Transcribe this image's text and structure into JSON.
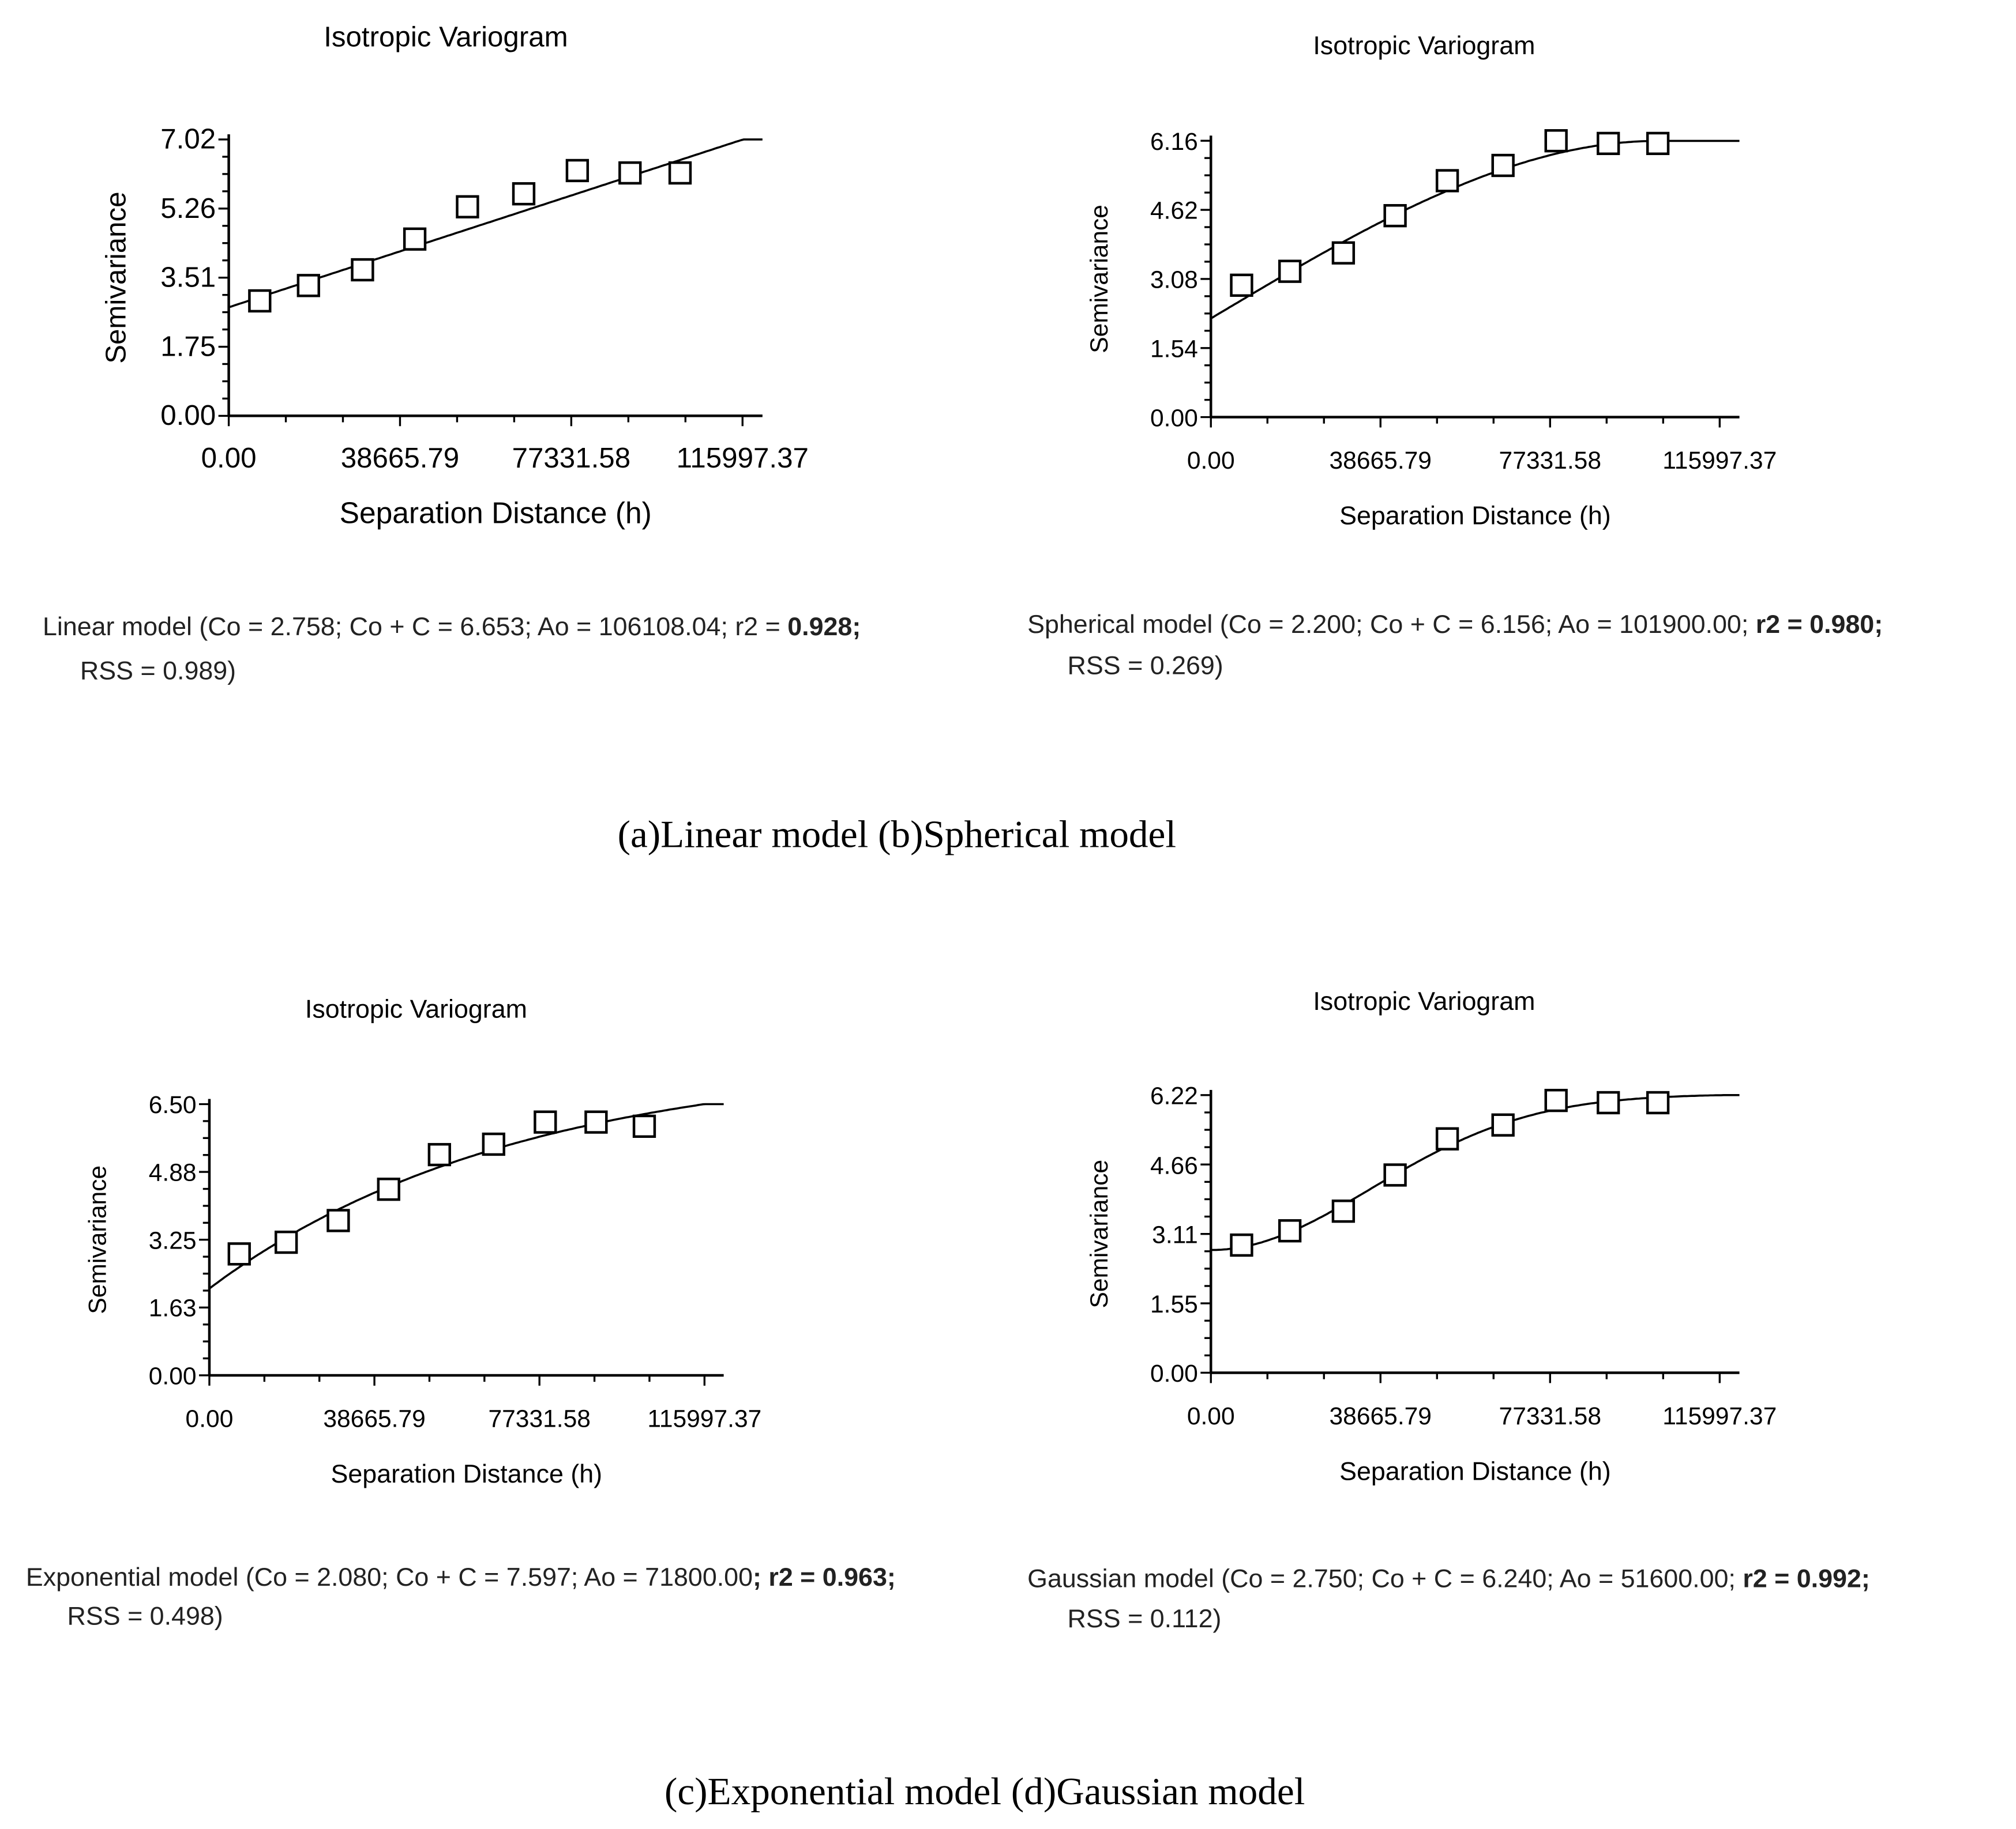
{
  "chart_data": [
    {
      "id": "a",
      "type": "scatter",
      "title": "Isotropic Variogram",
      "xlabel": "Separation Distance (h)",
      "ylabel": "Semivariance",
      "xticks": [
        "0.00",
        "38665.79",
        "77331.58",
        "115997.37"
      ],
      "xtick_values": [
        0,
        38665.79,
        77331.58,
        115997.37
      ],
      "yticks": [
        "0.00",
        "1.75",
        "3.51",
        "5.26",
        "7.02"
      ],
      "ytick_values": [
        0,
        1.75,
        3.51,
        5.26,
        7.02
      ],
      "xlim": [
        0,
        120500
      ],
      "ylim": [
        0,
        7.02
      ],
      "points": {
        "x": [
          7000,
          18000,
          30200,
          42000,
          53900,
          66600,
          78700,
          90600,
          101900
        ],
        "y": [
          2.92,
          3.31,
          3.71,
          4.49,
          5.31,
          5.64,
          6.23,
          6.17,
          6.17
        ]
      },
      "model": {
        "type": "linear",
        "Co": 2.758,
        "sill": 6.653,
        "Ao": 106108.04
      },
      "caption_line1": "Linear model (Co = 2.758; Co + C = 6.653; Ao = 106108.04; r2 = ",
      "r2": "0.928;",
      "caption_line2": "RSS = 0.989)"
    },
    {
      "id": "b",
      "type": "scatter",
      "title": "Isotropic Variogram",
      "xlabel": "Separation Distance (h)",
      "ylabel": "Semivariance",
      "xticks": [
        "0.00",
        "38665.79",
        "77331.58",
        "115997.37"
      ],
      "xtick_values": [
        0,
        38665.79,
        77331.58,
        115997.37
      ],
      "yticks": [
        "0.00",
        "1.54",
        "3.08",
        "4.62",
        "6.16"
      ],
      "ytick_values": [
        0,
        1.54,
        3.08,
        4.62,
        6.16
      ],
      "xlim": [
        0,
        120500
      ],
      "ylim": [
        0,
        6.16
      ],
      "points": {
        "x": [
          7000,
          18000,
          30200,
          42000,
          53900,
          66600,
          78700,
          90600,
          101900
        ],
        "y": [
          2.94,
          3.25,
          3.66,
          4.49,
          5.27,
          5.61,
          6.16,
          6.1,
          6.1
        ]
      },
      "model": {
        "type": "spherical",
        "Co": 2.2,
        "sill": 6.156,
        "Ao": 101900.0
      },
      "caption_line1": "Spherical model (Co = 2.200; Co + C = 6.156; Ao = 101900.00; ",
      "r2": "r2 = 0.980;",
      "caption_line2": "RSS = 0.269)"
    },
    {
      "id": "c",
      "type": "scatter",
      "title": "Isotropic Variogram",
      "xlabel": "Separation Distance (h)",
      "ylabel": "Semivariance",
      "xticks": [
        "0.00",
        "38665.79",
        "77331.58",
        "115997.37"
      ],
      "xtick_values": [
        0,
        38665.79,
        77331.58,
        115997.37
      ],
      "yticks": [
        "0.00",
        "1.63",
        "3.25",
        "4.88",
        "6.50"
      ],
      "ytick_values": [
        0,
        1.63,
        3.25,
        4.88,
        6.5
      ],
      "xlim": [
        0,
        120500
      ],
      "ylim": [
        0,
        6.5
      ],
      "points": {
        "x": [
          7000,
          18000,
          30200,
          42000,
          53900,
          66600,
          78700,
          90600,
          101900
        ],
        "y": [
          2.91,
          3.19,
          3.71,
          4.46,
          5.29,
          5.54,
          6.07,
          6.07,
          5.97
        ]
      },
      "model": {
        "type": "exponential",
        "Co": 2.08,
        "sill": 7.597,
        "Ao": 71800.0
      },
      "caption_line1": "Exponential model (Co = 2.080; Co + C = 7.597; Ao = 71800.00",
      "r2": "; r2 = 0.963;",
      "caption_line2": "RSS = 0.498)"
    },
    {
      "id": "d",
      "type": "scatter",
      "title": "Isotropic Variogram",
      "xlabel": "Separation Distance (h)",
      "ylabel": "Semivariance",
      "xticks": [
        "0.00",
        "38665.79",
        "77331.58",
        "115997.37"
      ],
      "xtick_values": [
        0,
        38665.79,
        77331.58,
        115997.37
      ],
      "yticks": [
        "0.00",
        "1.55",
        "3.11",
        "4.66",
        "6.22"
      ],
      "ytick_values": [
        0,
        1.55,
        3.11,
        4.66,
        6.22
      ],
      "xlim": [
        0,
        120500
      ],
      "ylim": [
        0,
        6.22
      ],
      "points": {
        "x": [
          7000,
          18000,
          30200,
          42000,
          53900,
          66600,
          78700,
          90600,
          101900
        ],
        "y": [
          2.86,
          3.18,
          3.62,
          4.43,
          5.24,
          5.55,
          6.1,
          6.05,
          6.05
        ]
      },
      "model": {
        "type": "gaussian",
        "Co": 2.75,
        "sill": 6.24,
        "Ao": 51600.0
      },
      "caption_line1": "Gaussian model (Co = 2.750; Co + C = 6.240; Ao = 51600.00; ",
      "r2": "r2 = 0.992;",
      "caption_line2": "RSS = 0.112)"
    }
  ],
  "figure_captions": {
    "top": "(a)Linear model (b)Spherical model",
    "bottom": "(c)Exponential model (d)Gaussian model"
  }
}
